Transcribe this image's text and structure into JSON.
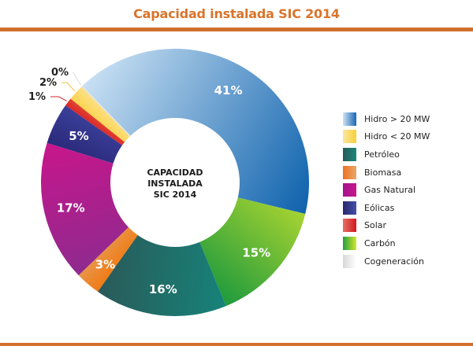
{
  "header": {
    "title": "Capacidad instalada SIC 2014"
  },
  "chart_data": {
    "type": "pie",
    "variant": "donut",
    "title": "Capacidad instalada SIC 2014",
    "center_label": [
      "CAPACIDAD",
      "INSTALADA",
      "SIC 2014"
    ],
    "legend_position": "right",
    "series": [
      {
        "name": "Hidro > 20 MW",
        "value": 41,
        "label": "41%",
        "colors": [
          "#c9e0f3",
          "#0e62ad"
        ],
        "label_color": "#ffffff"
      },
      {
        "name": "Carbón",
        "value": 15,
        "label": "15%",
        "colors": [
          "#a7d331",
          "#1e9a3d"
        ],
        "label_color": "#ffffff"
      },
      {
        "name": "Petróleo",
        "value": 16,
        "label": "16%",
        "colors": [
          "#16837a",
          "#2a5a58"
        ],
        "label_color": "#ffffff"
      },
      {
        "name": "Biomasa",
        "value": 3,
        "label": "3%",
        "colors": [
          "#f07a12",
          "#e8954a"
        ],
        "label_color": "#ffffff"
      },
      {
        "name": "Gas Natural",
        "value": 17,
        "label": "17%",
        "colors": [
          "#8e2a8e",
          "#c8168c"
        ],
        "label_color": "#ffffff"
      },
      {
        "name": "Eólicas",
        "value": 5,
        "label": "5%",
        "colors": [
          "#2a2a7a",
          "#3b3f9a"
        ],
        "label_color": "#ffffff"
      },
      {
        "name": "Solar",
        "value": 1,
        "label": "1%",
        "colors": [
          "#d9262c",
          "#e2442f"
        ],
        "label_color": "#222222",
        "callout": true,
        "callout_color": "#d9262c"
      },
      {
        "name": "Hidro < 20 MW",
        "value": 2,
        "label": "2%",
        "colors": [
          "#fcd34d",
          "#fbe18a"
        ],
        "label_color": "#222222",
        "callout": true,
        "callout_color": "#f5c24a"
      },
      {
        "name": "Cogeneración",
        "value": 0,
        "label": "0%",
        "colors": [
          "#e6e6e6",
          "#f4f4f4"
        ],
        "label_color": "#222222",
        "callout": true,
        "callout_color": "#dddddd"
      }
    ]
  },
  "legend": {
    "items": [
      {
        "label": "Hidro > 20 MW",
        "colors": [
          "#cfe3f5",
          "#1866b4"
        ]
      },
      {
        "label": "Hidro < 20 MW",
        "colors": [
          "#fbe7a0",
          "#f9d036"
        ]
      },
      {
        "label": "Petróleo",
        "colors": [
          "#2a5a58",
          "#18877c"
        ]
      },
      {
        "label": "Biomasa",
        "colors": [
          "#ef7220",
          "#e6a86a"
        ]
      },
      {
        "label": "Gas Natural",
        "colors": [
          "#a3148e",
          "#c8158b"
        ]
      },
      {
        "label": "Eólicas",
        "colors": [
          "#28286e",
          "#4450a8"
        ]
      },
      {
        "label": "Solar",
        "colors": [
          "#e87065",
          "#d2181f"
        ]
      },
      {
        "label": "Carbón",
        "colors": [
          "#22a040",
          "#d3e62a"
        ]
      },
      {
        "label": "Cogeneración",
        "colors": [
          "#d8d8d8",
          "#ffffff"
        ]
      }
    ]
  }
}
